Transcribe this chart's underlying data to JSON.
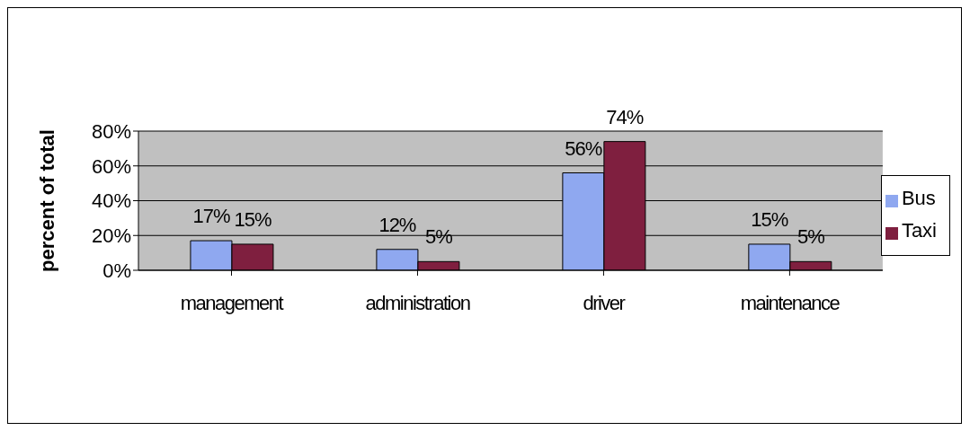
{
  "chart_data": {
    "type": "bar",
    "ylabel": "percent of total",
    "categories": [
      "management",
      "administration",
      "driver",
      "maintenance"
    ],
    "series": [
      {
        "name": "Bus",
        "color": "#8fa8f0",
        "values": [
          17,
          12,
          56,
          15
        ],
        "value_labels": [
          "17%",
          "12%",
          "56%",
          "15%"
        ]
      },
      {
        "name": "Taxi",
        "color": "#7f1f3f",
        "values": [
          15,
          5,
          74,
          5
        ],
        "value_labels": [
          "15%",
          "5%",
          "74%",
          "5%"
        ]
      }
    ],
    "ylim": [
      0,
      80
    ],
    "yticks": [
      {
        "value": 0,
        "label": "0%"
      },
      {
        "value": 20,
        "label": "20%"
      },
      {
        "value": 40,
        "label": "40%"
      },
      {
        "value": 60,
        "label": "60%"
      },
      {
        "value": 80,
        "label": "80%"
      }
    ],
    "grid": "y",
    "legend": "right"
  }
}
